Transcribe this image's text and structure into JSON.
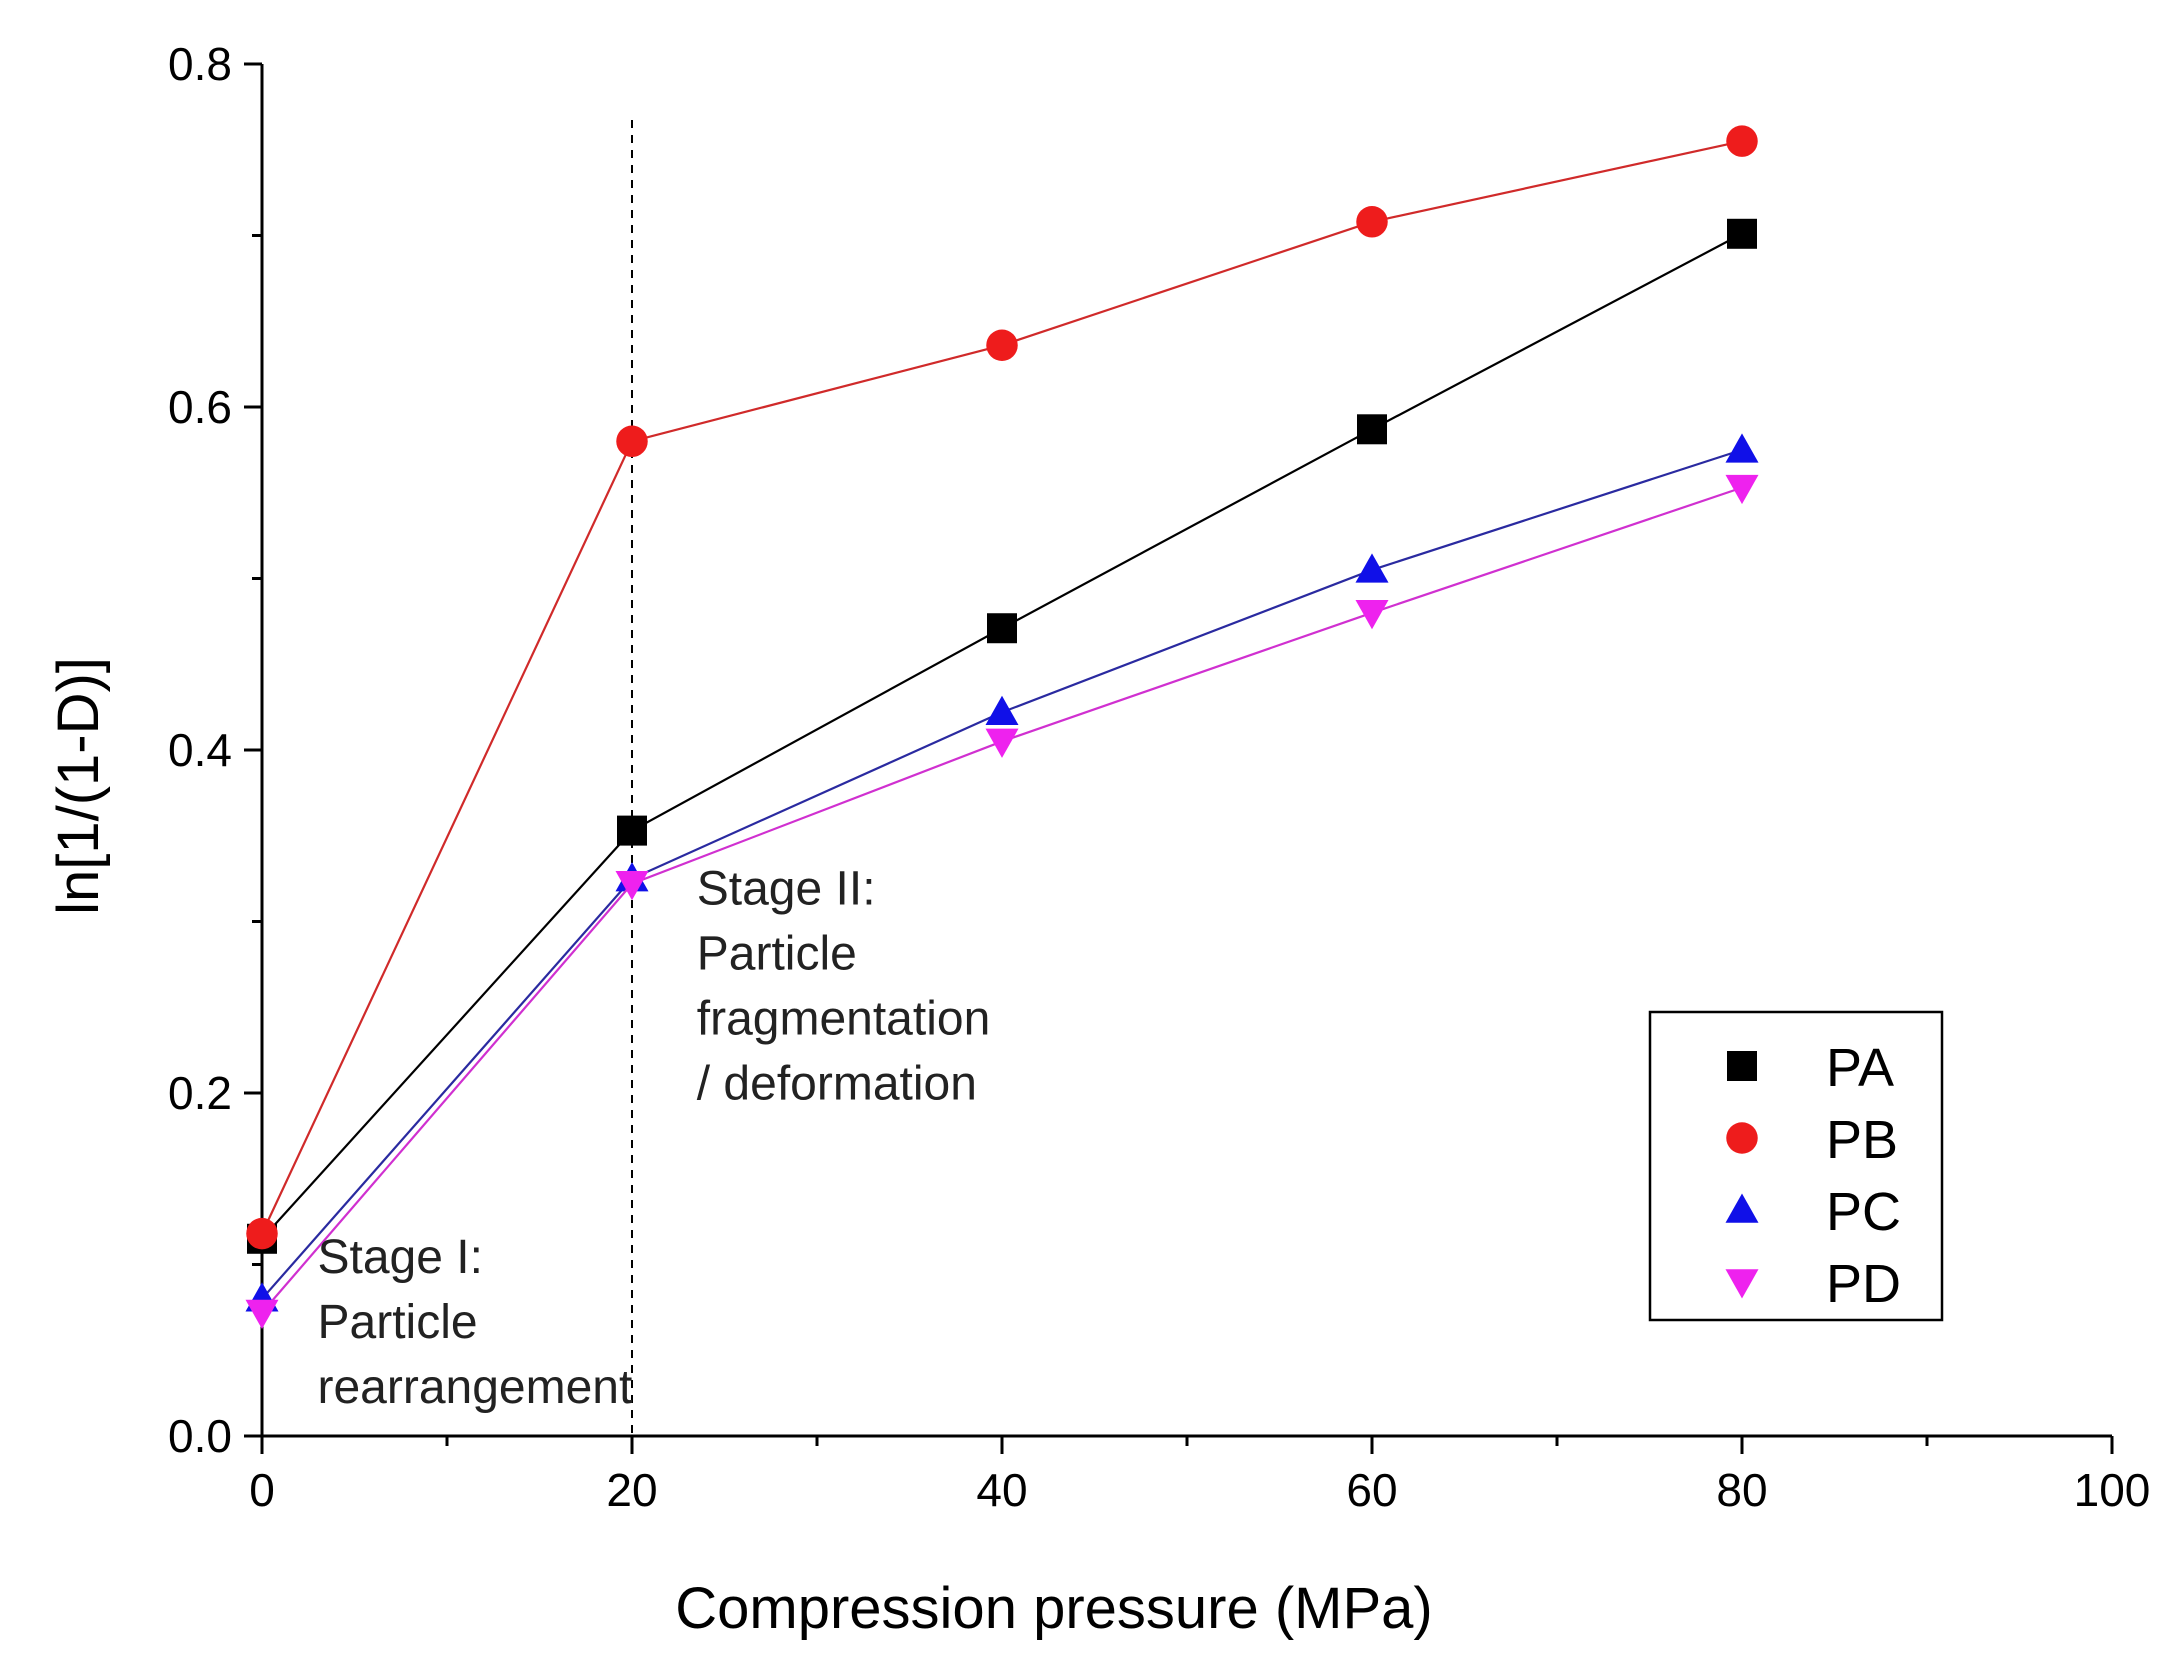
{
  "chart_data": {
    "type": "line",
    "title": "",
    "xlabel": "Compression pressure (MPa)",
    "ylabel": "ln[1/(1-D)]",
    "xlim": [
      0,
      100
    ],
    "ylim": [
      0,
      0.8
    ],
    "x_ticks": [
      0,
      20,
      40,
      60,
      80,
      100
    ],
    "x_tick_labels": [
      "0",
      "20",
      "40",
      "60",
      "80",
      "100"
    ],
    "y_ticks": [
      0.0,
      0.2,
      0.4,
      0.6,
      0.8
    ],
    "y_tick_labels": [
      "0.0",
      "0.2",
      "0.4",
      "0.6",
      "0.8"
    ],
    "x_minor_ticks": [
      10,
      30,
      50,
      70,
      90
    ],
    "y_minor_ticks": [
      0.1,
      0.3,
      0.5,
      0.7
    ],
    "grid": false,
    "legend_position": "bottom-right",
    "vline": {
      "x": 20,
      "style": "dashed"
    },
    "annotations": [
      {
        "id": "stage1",
        "x": 3,
        "y": 0.095,
        "lines": [
          "Stage I:",
          "Particle",
          "rearrangement"
        ]
      },
      {
        "id": "stage2",
        "x": 23.5,
        "y": 0.31,
        "lines": [
          "Stage II:",
          "Particle",
          "fragmentation",
          "/ deformation"
        ]
      }
    ],
    "x": [
      0,
      20,
      40,
      60,
      80
    ],
    "series": [
      {
        "name": "PA",
        "marker": "square",
        "color": "#000000",
        "line_color": "#000000",
        "values": [
          0.115,
          0.353,
          0.471,
          0.587,
          0.701
        ]
      },
      {
        "name": "PB",
        "marker": "circle",
        "color": "#ee1c1c",
        "line_color": "#d02a2a",
        "values": [
          0.118,
          0.58,
          0.636,
          0.708,
          0.755
        ]
      },
      {
        "name": "PC",
        "marker": "triangle-up",
        "color": "#1010e8",
        "line_color": "#2a2aa0",
        "values": [
          0.08,
          0.325,
          0.422,
          0.505,
          0.575
        ]
      },
      {
        "name": "PD",
        "marker": "triangle-down",
        "color": "#ee22ee",
        "line_color": "#d030d0",
        "values": [
          0.072,
          0.322,
          0.405,
          0.48,
          0.553
        ]
      }
    ]
  }
}
